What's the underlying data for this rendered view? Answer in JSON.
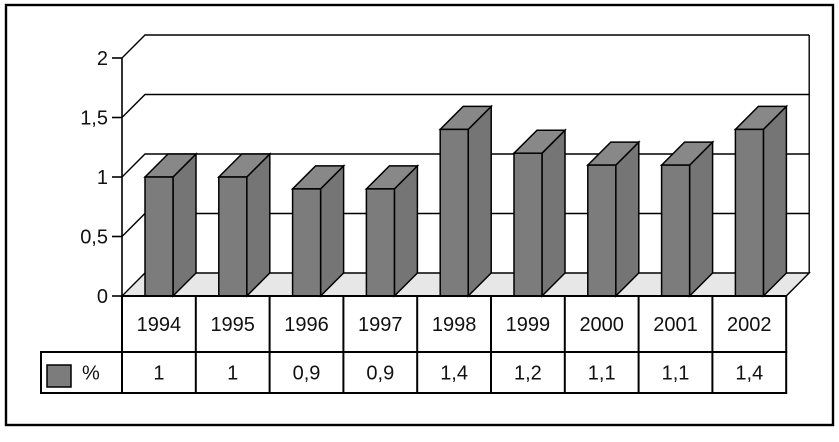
{
  "figure": {
    "type": "scanned-chart-figure",
    "background": "#ffffff",
    "border_color": "#000000"
  },
  "chart_data": {
    "type": "bar",
    "style": "3d-column",
    "title": "",
    "xlabel": "",
    "ylabel": "",
    "categories": [
      "1994",
      "1995",
      "1996",
      "1997",
      "1998",
      "1999",
      "2000",
      "2001",
      "2002"
    ],
    "series": [
      {
        "name": "%",
        "values": [
          1,
          1,
          0.9,
          0.9,
          1.4,
          1.2,
          1.1,
          1.1,
          1.4
        ]
      }
    ],
    "value_labels": [
      "1",
      "1",
      "0,9",
      "0,9",
      "1,4",
      "1,2",
      "1,1",
      "1,1",
      "1,4"
    ],
    "ylim": [
      0,
      2
    ],
    "yticks": [
      0,
      0.5,
      1,
      1.5,
      2
    ],
    "ytick_labels": [
      "0",
      "0,5",
      "1",
      "1,5",
      "2"
    ],
    "grid": true,
    "legend": {
      "label": "%",
      "position": "data-table-row"
    },
    "data_table": {
      "shown": true
    },
    "colors": {
      "bar_front": "#7c7c7c",
      "bar_top": "#888888",
      "bar_side": "#757575",
      "floor": "#e7e7e7",
      "line": "#000000",
      "text": "#111111"
    }
  }
}
